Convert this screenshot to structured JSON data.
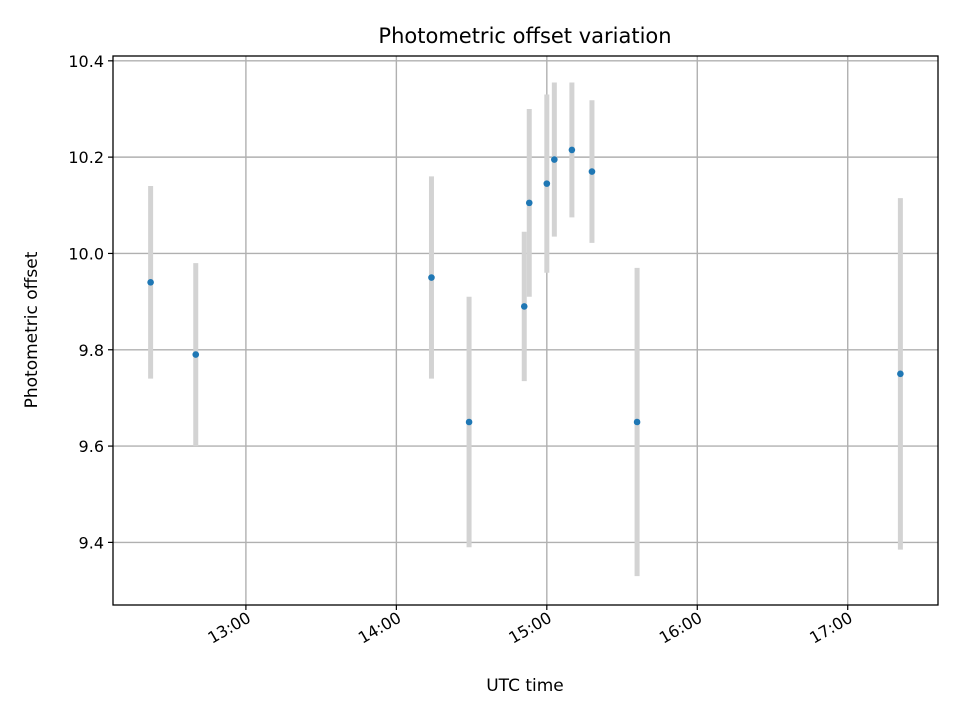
{
  "chart_data": {
    "type": "scatter",
    "title": "Photometric offset variation",
    "xlabel": "UTC time",
    "ylabel": "Photometric offset",
    "x_axis_kind": "time",
    "xlim": [
      "12:07",
      "17:36"
    ],
    "ylim": [
      9.27,
      10.41
    ],
    "x_ticks": [
      "13:00",
      "14:00",
      "15:00",
      "16:00",
      "17:00"
    ],
    "y_ticks": [
      9.4,
      9.6,
      9.8,
      10.0,
      10.2,
      10.4
    ],
    "y_tick_labels": [
      "9.4",
      "9.6",
      "9.8",
      "10.0",
      "10.2",
      "10.4"
    ],
    "grid": true,
    "marker_color": "#1f77b4",
    "errorbar_color": "#d3d3d3",
    "points": [
      {
        "x": "12:22",
        "y": 9.94,
        "yerr": 0.2
      },
      {
        "x": "12:40",
        "y": 9.79,
        "yerr": 0.19
      },
      {
        "x": "14:14",
        "y": 9.95,
        "yerr": 0.21
      },
      {
        "x": "14:29",
        "y": 9.65,
        "yerr": 0.26
      },
      {
        "x": "14:51",
        "y": 9.89,
        "yerr": 0.155
      },
      {
        "x": "14:53",
        "y": 10.105,
        "yerr": 0.195
      },
      {
        "x": "15:00",
        "y": 10.145,
        "yerr": 0.185
      },
      {
        "x": "15:03",
        "y": 10.195,
        "yerr": 0.16
      },
      {
        "x": "15:10",
        "y": 10.215,
        "yerr": 0.14
      },
      {
        "x": "15:18",
        "y": 10.17,
        "yerr": 0.148
      },
      {
        "x": "15:36",
        "y": 9.65,
        "yerr": 0.32
      },
      {
        "x": "17:21",
        "y": 9.75,
        "yerr": 0.365
      }
    ]
  }
}
